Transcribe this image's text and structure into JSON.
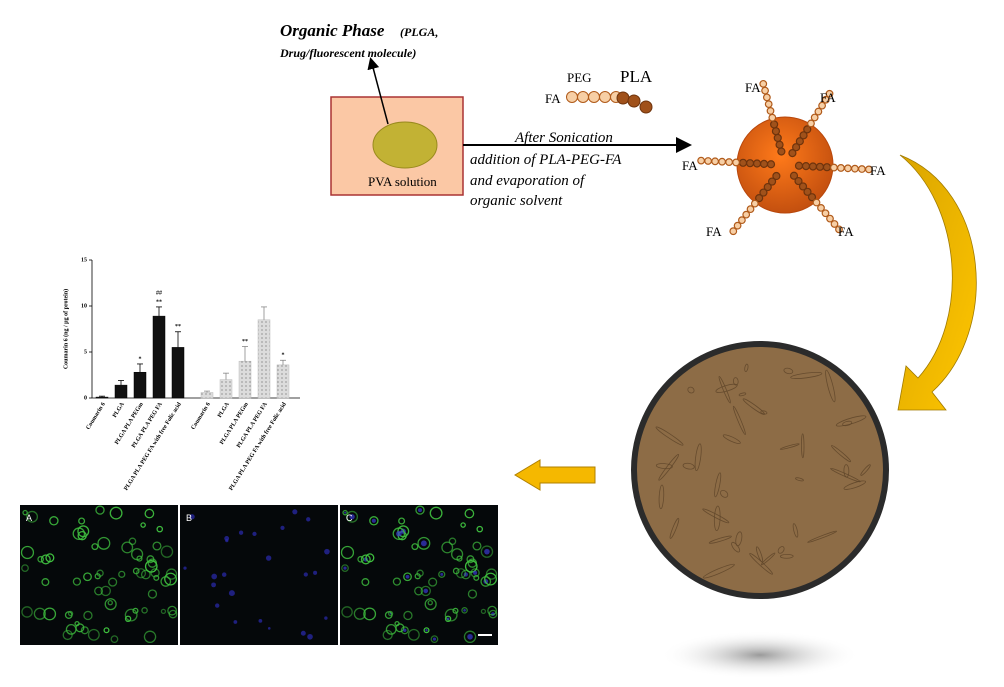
{
  "organic_phase": {
    "title": "Organic Phase",
    "detail": [
      "(PLGA,",
      "Drug/fluorescent molecule)"
    ]
  },
  "pva_label": "PVA solution",
  "process_text": [
    "After Sonication",
    "addition  of PLA-PEG-FA",
    "and evaporation of",
    "organic solvent"
  ],
  "polymer": {
    "peg": "PEG",
    "pla": "PLA",
    "fa": "FA"
  },
  "nanoparticle_labels": [
    "FA",
    "FA",
    "FA",
    "FA",
    "FA",
    "FA"
  ],
  "uptake_chart": {
    "type": "bar",
    "y_label": "Coumarin 6 (ng / µg of protein)",
    "ylim": [
      0,
      15
    ],
    "yticks": [
      0,
      5,
      10,
      15
    ],
    "groups": [
      {
        "categories": [
          "Coumarin 6",
          "PLGA",
          "PLGA PLA PEGm",
          "PLGA PLA PEG FA",
          "PLGA PLA PEG FA with free Folic acid"
        ],
        "values": [
          0.1,
          1.4,
          2.8,
          8.9,
          5.5
        ],
        "errors": [
          0.1,
          0.5,
          0.9,
          1.0,
          1.7
        ],
        "annotations": [
          null,
          null,
          [
            "*"
          ],
          [
            "##",
            "**"
          ],
          [
            "**"
          ]
        ],
        "color": "#111111"
      },
      {
        "categories": [
          "Coumarin 6",
          "PLGA",
          "PLGA PLA PEGm",
          "PLGA PLA PEG FA",
          "PLGA PLA PEG FA with free Folic acid"
        ],
        "values": [
          0.6,
          2.0,
          4.0,
          8.5,
          3.6
        ],
        "errors": [
          0.15,
          0.7,
          1.6,
          1.4,
          0.5
        ],
        "annotations": [
          null,
          null,
          [
            "**"
          ],
          null,
          [
            "*"
          ]
        ],
        "color": "#dcdcdc"
      }
    ]
  },
  "microscopy_panels": [
    "A",
    "B",
    "C"
  ]
}
